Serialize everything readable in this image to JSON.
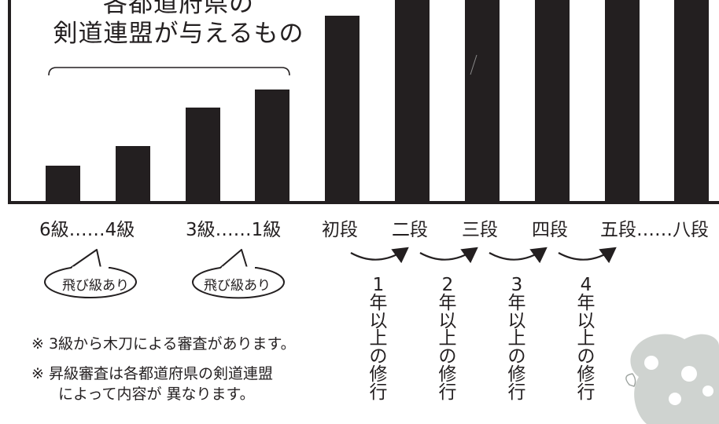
{
  "header": {
    "line1": "各都道府県の",
    "line2": "剣道連盟が与えるもの"
  },
  "ranks": {
    "kyu_low": "6級……4級",
    "kyu_high": "3級……1級",
    "shodan": "初段",
    "nidan": "二段",
    "sandan": "三段",
    "yondan": "四段",
    "godan_hachidan": "五段……八段"
  },
  "bubbles": [
    "飛び級あり",
    "飛び級あり"
  ],
  "intervals": [
    "1年以上の修行",
    "2年以上の修行",
    "3年以上の修行",
    "4年以上の修行"
  ],
  "notes": {
    "note1": "※ 3級から木刀による審査があります。",
    "note2_a": "※ 昇級審査は各都道府県の剣道連盟",
    "note2_b": "によって内容が 異なります。"
  },
  "colors": {
    "bar": "#231f20",
    "axis": "#231f20",
    "flowers": "#cfd3d0"
  }
}
